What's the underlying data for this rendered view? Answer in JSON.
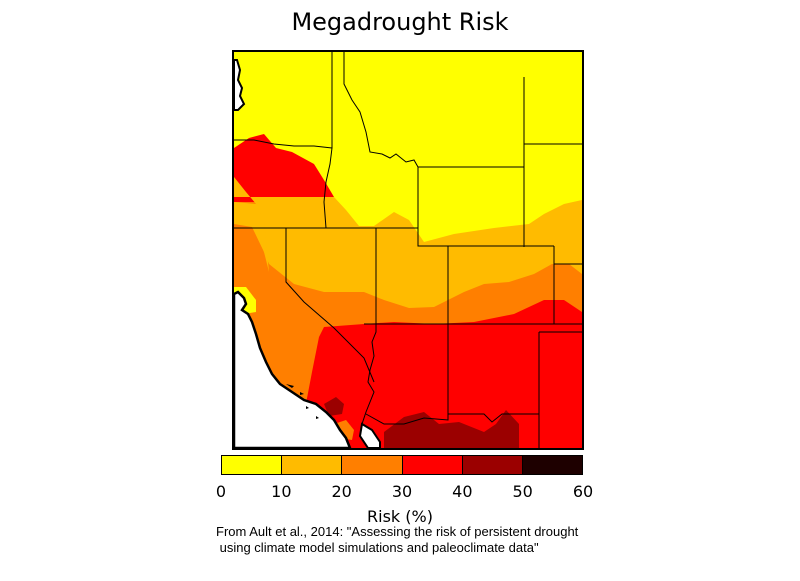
{
  "title": "Megadrought Risk",
  "legend": {
    "label": "Risk (%)",
    "ticks": [
      "0",
      "10",
      "20",
      "30",
      "40",
      "50",
      "60"
    ],
    "bins": [
      {
        "from": 0,
        "to": 10,
        "color": "#ffff00"
      },
      {
        "from": 10,
        "to": 20,
        "color": "#ffbb00"
      },
      {
        "from": 20,
        "to": 30,
        "color": "#ff7f00"
      },
      {
        "from": 30,
        "to": 40,
        "color": "#ff0000"
      },
      {
        "from": 40,
        "to": 50,
        "color": "#9b0000"
      },
      {
        "from": 50,
        "to": 60,
        "color": "#1e0000"
      }
    ]
  },
  "citation": {
    "line1": "From Ault et al., 2014: \"Assessing the risk of persistent drought",
    "line2": " using climate model simulations and paleoclimate data\""
  },
  "map": {
    "region": "western-united-states",
    "ocean_color": "#ffffff",
    "border_color": "#000000"
  }
}
